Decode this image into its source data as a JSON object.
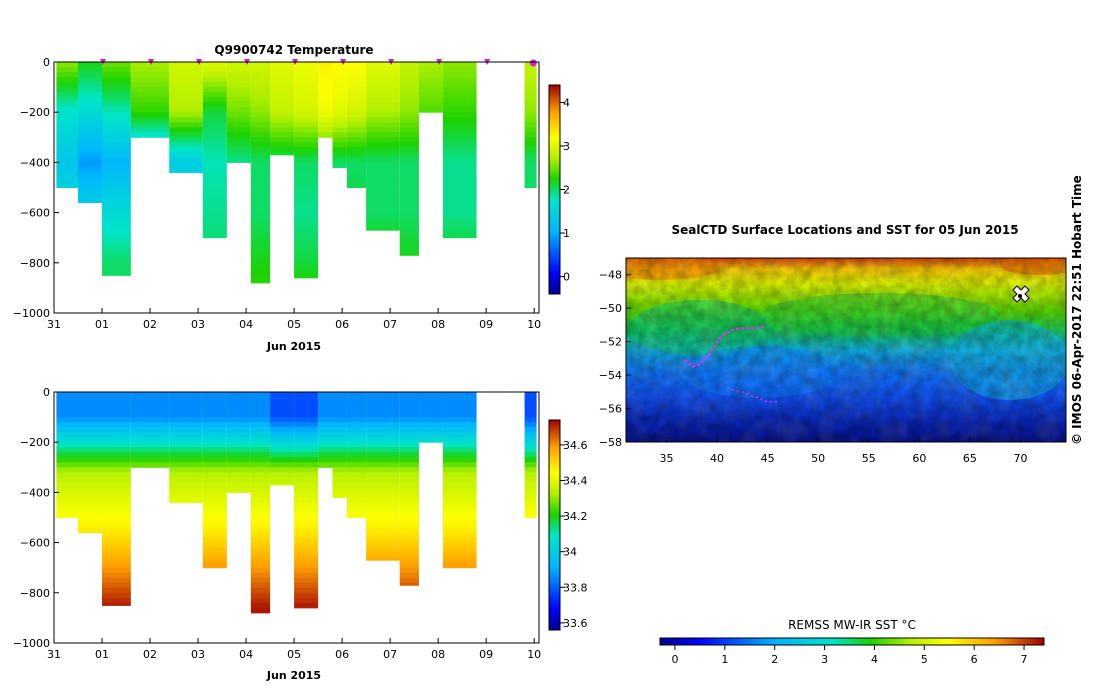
{
  "chart_data": [
    {
      "id": "temperature",
      "type": "heatmap",
      "title": "Q9900742  Temperature",
      "xlabel": "Jun 2015",
      "ylabel": "",
      "xlim": [
        31,
        41.1
      ],
      "ylim": [
        -1000,
        0
      ],
      "xticks": [
        {
          "v": 31,
          "label": "31"
        },
        {
          "v": 32,
          "label": "01"
        },
        {
          "v": 33,
          "label": "02"
        },
        {
          "v": 34,
          "label": "03"
        },
        {
          "v": 35,
          "label": "04"
        },
        {
          "v": 36,
          "label": "05"
        },
        {
          "v": 37,
          "label": "06"
        },
        {
          "v": 38,
          "label": "07"
        },
        {
          "v": 39,
          "label": "08"
        },
        {
          "v": 40,
          "label": "09"
        },
        {
          "v": 41,
          "label": "10"
        }
      ],
      "yticks": [
        {
          "v": 0,
          "label": "0"
        },
        {
          "v": -200,
          "label": "−200"
        },
        {
          "v": -400,
          "label": "−400"
        },
        {
          "v": -600,
          "label": "−600"
        },
        {
          "v": -800,
          "label": "−800"
        },
        {
          "v": -1000,
          "label": "−1000"
        }
      ],
      "colorbar": {
        "min": -0.4,
        "max": 4.4,
        "ticks": [
          {
            "v": 0,
            "label": "0"
          },
          {
            "v": 1,
            "label": "1"
          },
          {
            "v": 2,
            "label": "2"
          },
          {
            "v": 3,
            "label": "3"
          },
          {
            "v": 4,
            "label": "4"
          }
        ]
      },
      "profile_markers": [
        32.02,
        33.02,
        34.02,
        35.02,
        36.02,
        37.02,
        38.02,
        39.02,
        40.02,
        40.98
      ],
      "profiles": [
        {
          "x0": 31.05,
          "x1": 31.5,
          "depth": 500,
          "values": [
            2.6,
            1.7,
            1.3,
            1.7,
            2.0,
            2.0
          ]
        },
        {
          "x0": 31.5,
          "x1": 32.0,
          "depth": 560,
          "values": [
            2.2,
            1.6,
            0.9,
            1.5,
            2.0,
            2.0
          ]
        },
        {
          "x0": 32.0,
          "x1": 32.6,
          "depth": 850,
          "values": [
            2.5,
            1.8,
            1.1,
            1.6,
            2.0,
            2.0
          ]
        },
        {
          "x0": 32.6,
          "x1": 33.4,
          "depth": 300,
          "values": [
            2.7,
            2.3,
            1.1,
            1.3,
            1.8,
            1.8
          ]
        },
        {
          "x0": 33.4,
          "x1": 34.1,
          "depth": 440,
          "values": [
            2.9,
            2.7,
            1.4,
            1.6,
            1.9,
            2.0
          ]
        },
        {
          "x0": 34.1,
          "x1": 34.6,
          "depth": 700,
          "values": [
            3.0,
            2.1,
            1.8,
            1.9,
            2.0,
            2.2
          ]
        },
        {
          "x0": 34.6,
          "x1": 35.1,
          "depth": 400,
          "values": [
            2.9,
            2.5,
            1.9,
            1.9,
            2.0,
            2.0
          ]
        },
        {
          "x0": 35.1,
          "x1": 35.5,
          "depth": 880,
          "values": [
            2.9,
            2.6,
            2.0,
            2.0,
            2.2,
            2.4
          ]
        },
        {
          "x0": 35.5,
          "x1": 36.0,
          "depth": 370,
          "values": [
            3.0,
            2.8,
            2.0,
            1.9,
            2.0,
            2.0
          ]
        },
        {
          "x0": 36.0,
          "x1": 36.5,
          "depth": 860,
          "values": [
            3.1,
            2.9,
            2.0,
            1.9,
            2.1,
            2.5
          ]
        },
        {
          "x0": 36.5,
          "x1": 36.8,
          "depth": 300,
          "values": [
            3.3,
            3.1,
            2.1,
            2.0,
            2.0,
            2.0
          ]
        },
        {
          "x0": 36.8,
          "x1": 37.1,
          "depth": 420,
          "values": [
            3.2,
            3.0,
            2.0,
            1.9,
            2.0,
            2.0
          ]
        },
        {
          "x0": 37.1,
          "x1": 37.5,
          "depth": 500,
          "values": [
            3.2,
            2.9,
            2.0,
            2.1,
            2.3,
            2.4
          ]
        },
        {
          "x0": 37.5,
          "x1": 38.2,
          "depth": 670,
          "values": [
            3.0,
            2.7,
            2.0,
            2.0,
            2.3,
            2.6
          ]
        },
        {
          "x0": 38.2,
          "x1": 38.6,
          "depth": 770,
          "values": [
            2.8,
            2.6,
            2.0,
            2.0,
            2.2,
            2.2
          ]
        },
        {
          "x0": 38.6,
          "x1": 39.1,
          "depth": 200,
          "values": [
            2.7,
            2.4,
            2.0,
            2.0,
            2.0,
            2.0
          ]
        },
        {
          "x0": 39.1,
          "x1": 39.8,
          "depth": 700,
          "values": [
            2.6,
            2.3,
            1.9,
            1.9,
            2.2,
            2.3
          ]
        },
        {
          "x0": 40.8,
          "x1": 41.05,
          "depth": 500,
          "values": [
            2.8,
            2.6,
            2.0,
            2.0,
            2.1,
            2.1
          ]
        }
      ]
    },
    {
      "id": "salinity",
      "type": "heatmap",
      "title": "",
      "xlabel": "Jun 2015",
      "ylabel": "",
      "xlim": [
        31,
        41.1
      ],
      "ylim": [
        -1000,
        0
      ],
      "xticks": [
        {
          "v": 31,
          "label": "31"
        },
        {
          "v": 32,
          "label": "01"
        },
        {
          "v": 33,
          "label": "02"
        },
        {
          "v": 34,
          "label": "03"
        },
        {
          "v": 35,
          "label": "04"
        },
        {
          "v": 36,
          "label": "05"
        },
        {
          "v": 37,
          "label": "06"
        },
        {
          "v": 38,
          "label": "07"
        },
        {
          "v": 39,
          "label": "08"
        },
        {
          "v": 40,
          "label": "09"
        },
        {
          "v": 41,
          "label": "10"
        }
      ],
      "yticks": [
        {
          "v": 0,
          "label": "0"
        },
        {
          "v": -200,
          "label": "−200"
        },
        {
          "v": -400,
          "label": "−400"
        },
        {
          "v": -600,
          "label": "−600"
        },
        {
          "v": -800,
          "label": "−800"
        },
        {
          "v": -1000,
          "label": "−1000"
        }
      ],
      "colorbar": {
        "min": 33.56,
        "max": 34.74,
        "ticks": [
          {
            "v": 33.6,
            "label": "33.6"
          },
          {
            "v": 33.8,
            "label": "33.8"
          },
          {
            "v": 34.0,
            "label": "34"
          },
          {
            "v": 34.2,
            "label": "34.2"
          },
          {
            "v": 34.4,
            "label": "34.4"
          },
          {
            "v": 34.6,
            "label": "34.6"
          }
        ]
      }
    },
    {
      "id": "sst_map",
      "type": "heatmap",
      "title": "SealCTD Surface Locations and SST for 05 Jun 2015",
      "xlim": [
        31,
        74.5
      ],
      "ylim": [
        -58,
        -47
      ],
      "xticks": [
        {
          "v": 35,
          "label": "35"
        },
        {
          "v": 40,
          "label": "40"
        },
        {
          "v": 45,
          "label": "45"
        },
        {
          "v": 50,
          "label": "50"
        },
        {
          "v": 55,
          "label": "55"
        },
        {
          "v": 60,
          "label": "60"
        },
        {
          "v": 65,
          "label": "65"
        },
        {
          "v": 70,
          "label": "70"
        }
      ],
      "yticks": [
        {
          "v": -48,
          "label": "−48"
        },
        {
          "v": -50,
          "label": "−50"
        },
        {
          "v": -52,
          "label": "−52"
        },
        {
          "v": -54,
          "label": "−54"
        },
        {
          "v": -56,
          "label": "−56"
        },
        {
          "v": -58,
          "label": "−58"
        }
      ],
      "colorbar": {
        "label": "REMSS MW-IR SST °C",
        "min": -0.3,
        "max": 7.4,
        "ticks": [
          {
            "v": 0,
            "label": "0"
          },
          {
            "v": 1,
            "label": "1"
          },
          {
            "v": 2,
            "label": "2"
          },
          {
            "v": 3,
            "label": "3"
          },
          {
            "v": 4,
            "label": "4"
          },
          {
            "v": 5,
            "label": "5"
          },
          {
            "v": 6,
            "label": "6"
          },
          {
            "v": 7,
            "label": "7"
          }
        ]
      },
      "track": [
        [
          36.8,
          -53.1
        ],
        [
          37.6,
          -53.5
        ],
        [
          38.4,
          -53.3
        ],
        [
          39.2,
          -52.8
        ],
        [
          40.4,
          -51.7
        ],
        [
          41.5,
          -51.3
        ],
        [
          42.3,
          -51.2
        ],
        [
          43.2,
          -51.2
        ],
        [
          44.0,
          -51.2
        ],
        [
          44.6,
          -51.1
        ]
      ],
      "track2": [
        [
          41.0,
          -54.8
        ],
        [
          42.5,
          -55.0
        ],
        [
          43.8,
          -55.3
        ],
        [
          45.0,
          -55.6
        ],
        [
          46.2,
          -55.6
        ]
      ]
    }
  ],
  "credit": "© IMOS 06-Apr-2017 22:51 Hobart Time",
  "colors": {
    "track": "#ff22ff",
    "marker": "#d020d0"
  }
}
